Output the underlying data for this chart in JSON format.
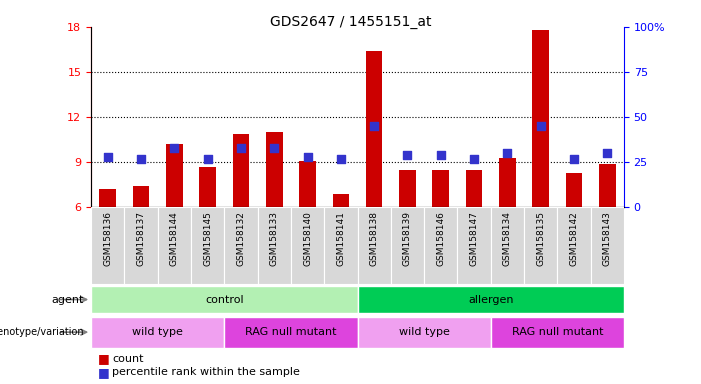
{
  "title": "GDS2647 / 1455151_at",
  "samples": [
    "GSM158136",
    "GSM158137",
    "GSM158144",
    "GSM158145",
    "GSM158132",
    "GSM158133",
    "GSM158140",
    "GSM158141",
    "GSM158138",
    "GSM158139",
    "GSM158146",
    "GSM158147",
    "GSM158134",
    "GSM158135",
    "GSM158142",
    "GSM158143"
  ],
  "counts": [
    7.2,
    7.4,
    10.2,
    8.7,
    10.9,
    11.0,
    9.1,
    6.9,
    16.4,
    8.5,
    8.5,
    8.5,
    9.3,
    17.8,
    8.3,
    8.9
  ],
  "percentiles": [
    28,
    27,
    33,
    27,
    33,
    33,
    28,
    27,
    45,
    29,
    29,
    27,
    30,
    45,
    27,
    30
  ],
  "ylim_left": [
    6,
    18
  ],
  "yticks_left": [
    6,
    9,
    12,
    15,
    18
  ],
  "ylim_right": [
    0,
    100
  ],
  "yticks_right": [
    0,
    25,
    50,
    75,
    100
  ],
  "bar_color": "#cc0000",
  "dot_color": "#3333cc",
  "agent_labels": [
    {
      "text": "control",
      "start": 0,
      "end": 8,
      "color": "#b3f0b3"
    },
    {
      "text": "allergen",
      "start": 8,
      "end": 16,
      "color": "#00cc55"
    }
  ],
  "genotype_labels": [
    {
      "text": "wild type",
      "start": 0,
      "end": 4,
      "color": "#f0a0f0"
    },
    {
      "text": "RAG null mutant",
      "start": 4,
      "end": 8,
      "color": "#dd44dd"
    },
    {
      "text": "wild type",
      "start": 8,
      "end": 12,
      "color": "#f0a0f0"
    },
    {
      "text": "RAG null mutant",
      "start": 12,
      "end": 16,
      "color": "#dd44dd"
    }
  ],
  "legend_count_color": "#cc0000",
  "legend_pct_color": "#3333cc",
  "dotted_yticks": [
    9,
    12,
    15
  ],
  "dot_size": 35,
  "bar_width": 0.5,
  "xtick_bg": "#d8d8d8"
}
